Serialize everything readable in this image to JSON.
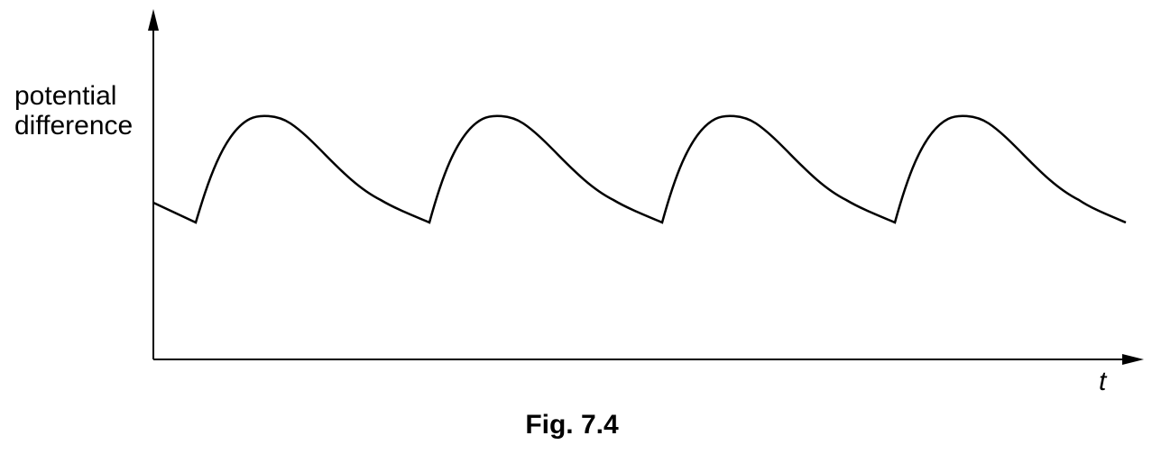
{
  "chart_data": {
    "type": "line",
    "title": "",
    "caption": "Fig. 7.4",
    "xlabel": "t",
    "ylabel_lines": [
      "potential",
      "difference"
    ],
    "x_ticks_labeled": false,
    "y_ticks_labeled": false,
    "grid": false,
    "legend": "none",
    "line_color": "#000000",
    "description_of_shape": "periodic rise then exponential-like decay",
    "series": [
      {
        "x": [
          0,
          0.9,
          1.5,
          2.0,
          2.6,
          3.2,
          3.8,
          4.4,
          5.0,
          5.6,
          6.3,
          6.9,
          7.5,
          8.2,
          8.8,
          9.4,
          10.1,
          10.6,
          11.3,
          11.9,
          12.6,
          13.1,
          13.7,
          14.3,
          15.0,
          15.6,
          16.2,
          16.9,
          17.5,
          18.2,
          18.8,
          19.4,
          20.0,
          20.7,
          21.3
        ],
        "y": [
          4.3,
          3.9,
          5.5,
          7.0,
          8.3,
          8.1,
          7.0,
          6.1,
          5.5,
          5.0,
          4.3,
          3.9,
          5.5,
          7.0,
          8.3,
          8.1,
          7.0,
          6.1,
          5.5,
          5.0,
          3.9,
          5.5,
          7.0,
          8.3,
          8.1,
          7.0,
          6.1,
          5.5,
          5.0,
          3.9,
          5.5,
          7.0,
          8.3,
          8.1,
          3.7
        ]
      }
    ]
  }
}
